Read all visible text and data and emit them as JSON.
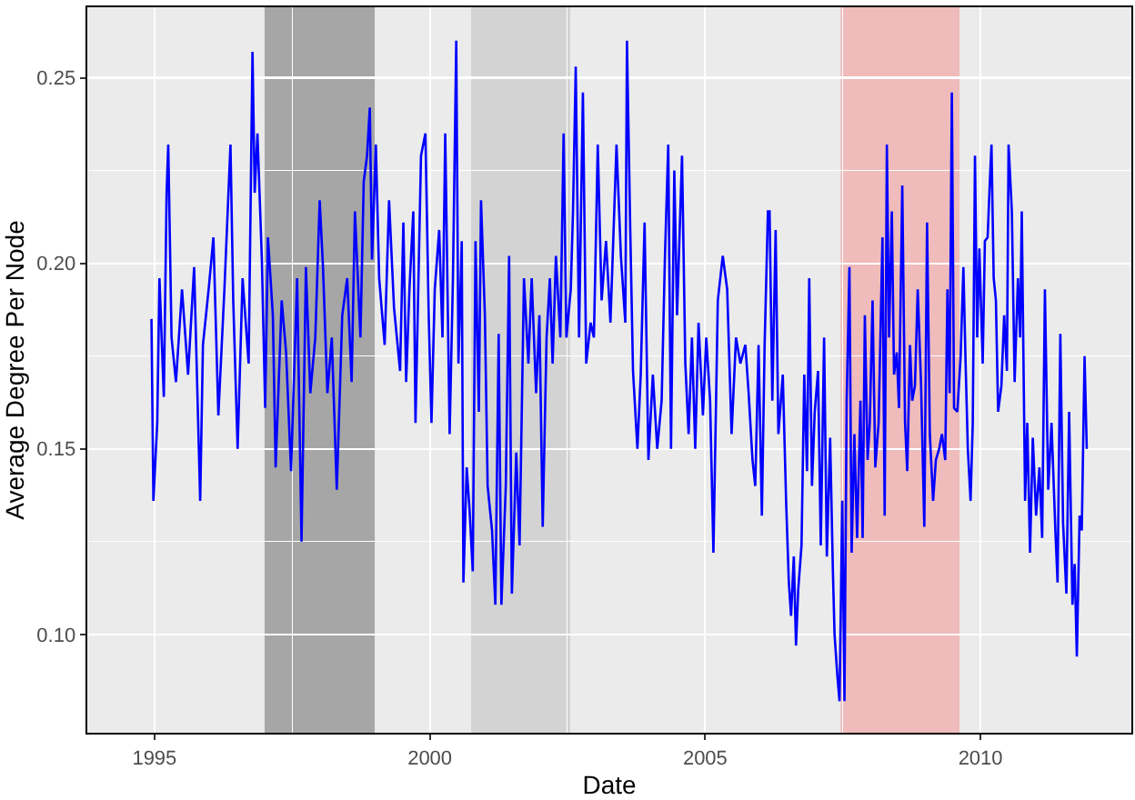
{
  "chart_data": {
    "type": "line",
    "xlabel": "Date",
    "ylabel": "Average Degree Per Node",
    "xlim": [
      1993.78,
      2012.74
    ],
    "ylim": [
      0.0735,
      0.269
    ],
    "xticks": [
      1995,
      2000,
      2005,
      2010
    ],
    "yticks": [
      {
        "value": 0.1,
        "label": "0.10"
      },
      {
        "value": 0.15,
        "label": "0.15"
      },
      {
        "value": 0.2,
        "label": "0.20"
      },
      {
        "value": 0.25,
        "label": "0.25"
      }
    ],
    "grid": true,
    "marker": "none",
    "line_style": "solid",
    "bands": [
      {
        "axis": "x",
        "from": 1997.0,
        "to": 1999.0,
        "color": "#a6a6a6"
      },
      {
        "axis": "x",
        "from": 2000.75,
        "to": 2002.55,
        "color": "#d3d3d3"
      },
      {
        "axis": "x",
        "from": 2007.46,
        "to": 2009.62,
        "color": "#efbbbb"
      }
    ],
    "series": [
      {
        "color": "#0000ff",
        "x": [
          1994.945,
          1994.98,
          1995.05,
          1995.09,
          1995.17,
          1995.22,
          1995.25,
          1995.31,
          1995.39,
          1995.5,
          1995.61,
          1995.72,
          1995.83,
          1995.88,
          1995.99,
          1996.07,
          1996.16,
          1996.27,
          1996.38,
          1996.43,
          1996.51,
          1996.6,
          1996.71,
          1996.78,
          1996.82,
          1996.87,
          1996.95,
          1997.01,
          1997.06,
          1997.15,
          1997.2,
          1997.31,
          1997.39,
          1997.48,
          1997.59,
          1997.67,
          1997.75,
          1997.83,
          1997.92,
          1998.0,
          1998.06,
          1998.14,
          1998.22,
          1998.31,
          1998.41,
          1998.5,
          1998.58,
          1998.64,
          1998.74,
          1998.8,
          1998.86,
          1998.91,
          1998.95,
          1999.02,
          1999.08,
          1999.18,
          1999.26,
          1999.35,
          1999.46,
          1999.52,
          1999.57,
          1999.63,
          1999.7,
          1999.74,
          1999.84,
          1999.92,
          1999.98,
          2000.03,
          2000.09,
          2000.17,
          2000.23,
          2000.28,
          2000.36,
          2000.42,
          2000.48,
          2000.52,
          2000.58,
          2000.61,
          2000.67,
          2000.72,
          2000.78,
          2000.83,
          2000.89,
          2000.93,
          2001.0,
          2001.05,
          2001.13,
          2001.19,
          2001.25,
          2001.3,
          2001.38,
          2001.44,
          2001.49,
          2001.57,
          2001.63,
          2001.71,
          2001.79,
          2001.85,
          2001.93,
          2001.99,
          2002.05,
          2002.12,
          2002.18,
          2002.23,
          2002.29,
          2002.37,
          2002.43,
          2002.48,
          2002.56,
          2002.6,
          2002.65,
          2002.71,
          2002.78,
          2002.84,
          2002.92,
          2002.98,
          2003.05,
          2003.12,
          2003.2,
          2003.28,
          2003.39,
          2003.47,
          2003.55,
          2003.58,
          2003.64,
          2003.69,
          2003.77,
          2003.83,
          2003.9,
          2003.97,
          2004.05,
          2004.13,
          2004.21,
          2004.27,
          2004.33,
          2004.38,
          2004.44,
          2004.49,
          2004.58,
          2004.64,
          2004.7,
          2004.76,
          2004.82,
          2004.88,
          2004.96,
          2005.02,
          2005.09,
          2005.15,
          2005.23,
          2005.32,
          2005.4,
          2005.48,
          2005.56,
          2005.64,
          2005.73,
          2005.79,
          2005.86,
          2005.91,
          2005.97,
          2006.03,
          2006.08,
          2006.14,
          2006.17,
          2006.22,
          2006.28,
          2006.33,
          2006.41,
          2006.47,
          2006.52,
          2006.56,
          2006.61,
          2006.65,
          2006.69,
          2006.75,
          2006.8,
          2006.85,
          2006.89,
          2006.94,
          2006.99,
          2007.05,
          2007.1,
          2007.16,
          2007.21,
          2007.27,
          2007.32,
          2007.35,
          2007.4,
          2007.44,
          2007.49,
          2007.53,
          2007.57,
          2007.62,
          2007.66,
          2007.71,
          2007.76,
          2007.82,
          2007.86,
          2007.9,
          2007.95,
          2007.99,
          2008.04,
          2008.09,
          2008.15,
          2008.22,
          2008.26,
          2008.3,
          2008.34,
          2008.39,
          2008.43,
          2008.48,
          2008.52,
          2008.58,
          2008.63,
          2008.67,
          2008.72,
          2008.76,
          2008.81,
          2008.86,
          2008.92,
          2008.98,
          2009.03,
          2009.08,
          2009.14,
          2009.19,
          2009.25,
          2009.3,
          2009.36,
          2009.4,
          2009.44,
          2009.48,
          2009.52,
          2009.58,
          2009.64,
          2009.69,
          2009.73,
          2009.77,
          2009.82,
          2009.86,
          2009.9,
          2009.94,
          2009.98,
          2010.04,
          2010.08,
          2010.13,
          2010.17,
          2010.2,
          2010.24,
          2010.28,
          2010.32,
          2010.38,
          2010.43,
          2010.48,
          2010.51,
          2010.57,
          2010.62,
          2010.68,
          2010.72,
          2010.75,
          2010.81,
          2010.85,
          2010.9,
          2010.95,
          2011.01,
          2011.07,
          2011.12,
          2011.17,
          2011.23,
          2011.29,
          2011.36,
          2011.4,
          2011.45,
          2011.5,
          2011.56,
          2011.61,
          2011.67,
          2011.71,
          2011.75,
          2011.8,
          2011.84,
          2011.89,
          2011.93
        ],
        "values": [
          0.185,
          0.136,
          0.157,
          0.196,
          0.164,
          0.219,
          0.232,
          0.18,
          0.168,
          0.193,
          0.17,
          0.199,
          0.136,
          0.178,
          0.194,
          0.207,
          0.159,
          0.193,
          0.232,
          0.19,
          0.15,
          0.196,
          0.173,
          0.257,
          0.219,
          0.235,
          0.201,
          0.161,
          0.207,
          0.186,
          0.145,
          0.19,
          0.176,
          0.144,
          0.196,
          0.125,
          0.199,
          0.165,
          0.18,
          0.217,
          0.199,
          0.165,
          0.18,
          0.139,
          0.186,
          0.196,
          0.168,
          0.214,
          0.18,
          0.222,
          0.229,
          0.242,
          0.201,
          0.232,
          0.196,
          0.178,
          0.217,
          0.188,
          0.171,
          0.211,
          0.168,
          0.193,
          0.214,
          0.157,
          0.229,
          0.235,
          0.186,
          0.157,
          0.193,
          0.209,
          0.18,
          0.235,
          0.154,
          0.196,
          0.26,
          0.173,
          0.206,
          0.114,
          0.145,
          0.134,
          0.117,
          0.206,
          0.16,
          0.217,
          0.186,
          0.14,
          0.128,
          0.108,
          0.181,
          0.108,
          0.14,
          0.202,
          0.111,
          0.149,
          0.124,
          0.196,
          0.173,
          0.196,
          0.165,
          0.186,
          0.129,
          0.18,
          0.196,
          0.173,
          0.202,
          0.18,
          0.235,
          0.18,
          0.193,
          0.214,
          0.253,
          0.18,
          0.246,
          0.173,
          0.184,
          0.18,
          0.232,
          0.19,
          0.206,
          0.184,
          0.232,
          0.202,
          0.184,
          0.26,
          0.209,
          0.171,
          0.15,
          0.17,
          0.211,
          0.147,
          0.17,
          0.15,
          0.163,
          0.202,
          0.232,
          0.15,
          0.225,
          0.186,
          0.229,
          0.173,
          0.154,
          0.18,
          0.15,
          0.184,
          0.159,
          0.18,
          0.163,
          0.122,
          0.19,
          0.202,
          0.193,
          0.154,
          0.18,
          0.173,
          0.178,
          0.165,
          0.147,
          0.14,
          0.178,
          0.132,
          0.178,
          0.214,
          0.214,
          0.163,
          0.209,
          0.154,
          0.17,
          0.136,
          0.114,
          0.105,
          0.121,
          0.097,
          0.112,
          0.124,
          0.17,
          0.144,
          0.196,
          0.14,
          0.16,
          0.171,
          0.124,
          0.18,
          0.121,
          0.153,
          0.117,
          0.1,
          0.089,
          0.082,
          0.136,
          0.082,
          0.163,
          0.199,
          0.122,
          0.154,
          0.126,
          0.163,
          0.126,
          0.186,
          0.147,
          0.157,
          0.19,
          0.145,
          0.157,
          0.207,
          0.132,
          0.232,
          0.18,
          0.214,
          0.17,
          0.176,
          0.161,
          0.221,
          0.157,
          0.144,
          0.178,
          0.163,
          0.167,
          0.193,
          0.168,
          0.129,
          0.211,
          0.154,
          0.136,
          0.147,
          0.15,
          0.154,
          0.147,
          0.193,
          0.165,
          0.246,
          0.161,
          0.16,
          0.175,
          0.199,
          0.173,
          0.15,
          0.136,
          0.157,
          0.229,
          0.18,
          0.204,
          0.173,
          0.206,
          0.207,
          0.222,
          0.232,
          0.196,
          0.19,
          0.16,
          0.167,
          0.186,
          0.171,
          0.232,
          0.214,
          0.168,
          0.196,
          0.18,
          0.214,
          0.136,
          0.157,
          0.122,
          0.153,
          0.132,
          0.145,
          0.126,
          0.193,
          0.139,
          0.157,
          0.128,
          0.114,
          0.181,
          0.13,
          0.111,
          0.16,
          0.108,
          0.119,
          0.094,
          0.132,
          0.128,
          0.175,
          0.15
        ]
      }
    ]
  }
}
